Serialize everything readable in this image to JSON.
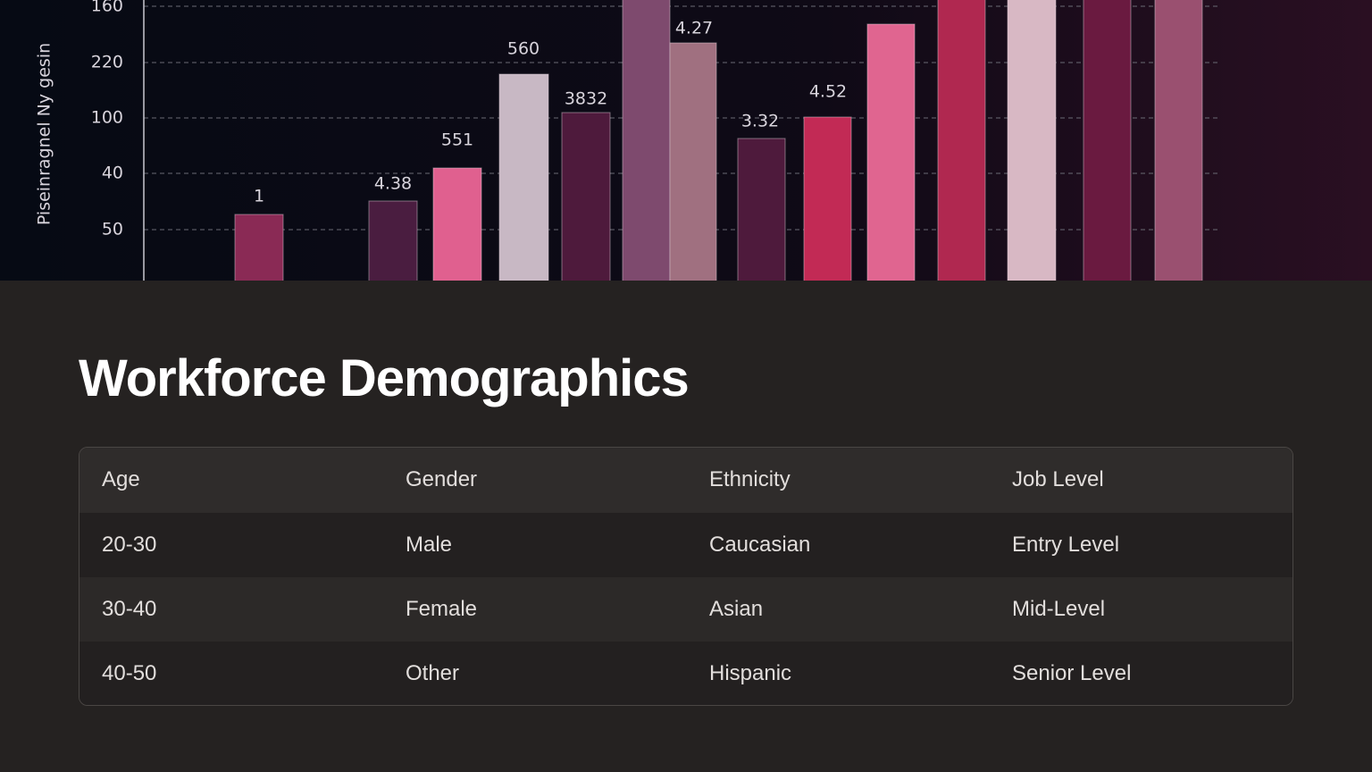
{
  "banner_chart": {
    "axis_label": "Piseinragnel Ny gesin",
    "tick_labels": [
      "160",
      "220",
      "100",
      "40",
      "50"
    ],
    "bar_labels": [
      "1",
      "4.38",
      "551",
      "560",
      "3832",
      "4.27",
      "3.32",
      "4.52"
    ]
  },
  "title": "Workforce Demographics",
  "table": {
    "header": [
      "Age",
      "Gender",
      "Ethnicity",
      "Job Level"
    ],
    "rows": [
      [
        "20-30",
        "Male",
        "Caucasian",
        "Entry Level"
      ],
      [
        "30-40",
        "Female",
        "Asian",
        "Mid-Level"
      ],
      [
        "40-50",
        "Other",
        "Hispanic",
        "Senior Level"
      ]
    ]
  }
}
